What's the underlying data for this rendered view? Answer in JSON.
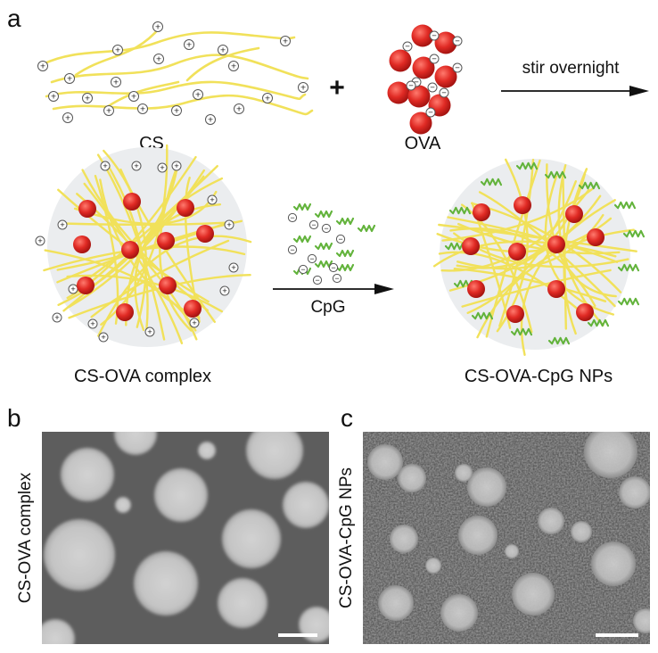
{
  "panels": {
    "a": {
      "letter": "a"
    },
    "b": {
      "letter": "b",
      "side_label": "CS-OVA complex"
    },
    "c": {
      "letter": "c",
      "side_label": "CS-OVA-CpG NPs"
    }
  },
  "step1": {
    "cs_label": "CS",
    "plus": "+",
    "ova_label": "OVA",
    "arrow_label": "stir overnight"
  },
  "step2": {
    "complex_label": "CS-OVA complex",
    "cpg_label": "CpG",
    "np_label": "CS-OVA-CpG NPs"
  },
  "symbols": {
    "positive": "+",
    "negative": "−"
  },
  "colors": {
    "chitosan_chain": "#f1e15a",
    "ova_protein": "#d62b2b",
    "cpg_strand": "#62b33b",
    "particle_background": "#ebedef",
    "tem_background_b": "#5d5d5d",
    "tem_background_c": "#5a5a5a",
    "tem_particle": "#c9c9c9"
  }
}
